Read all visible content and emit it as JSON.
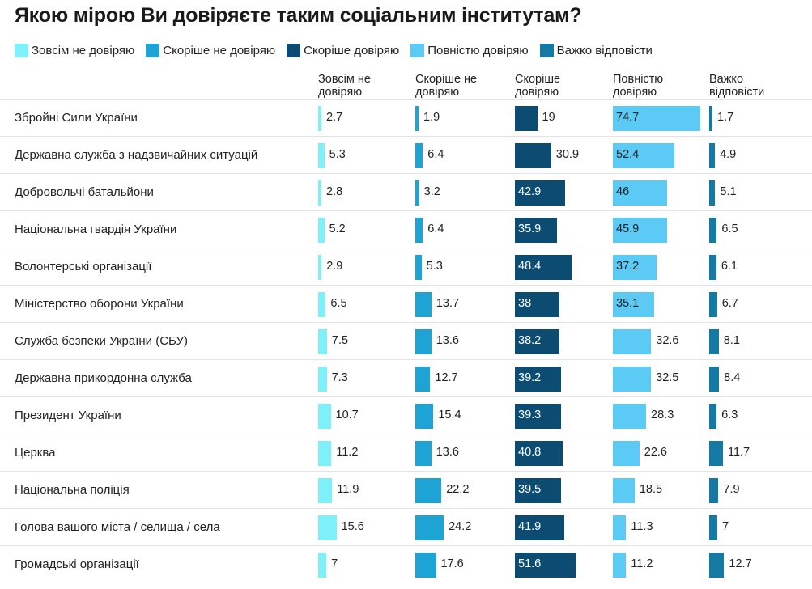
{
  "title": "Якою мірою Ви довіряєте таким соціальним інститутам?",
  "chart_data": {
    "type": "table",
    "title": "Якою мірою Ви довіряєте таким соціальним інститутам?",
    "series": [
      {
        "name": "Зовсім не довіряю",
        "header": [
          "Зовсім не",
          "довіряю"
        ],
        "color": "#7df0fa",
        "values": [
          2.7,
          5.3,
          2.8,
          5.2,
          2.9,
          6.5,
          7.5,
          7.3,
          10.7,
          11.2,
          11.9,
          15.6,
          7
        ]
      },
      {
        "name": "Скоріше не довіряю",
        "header": [
          "Скоріше не",
          "довіряю"
        ],
        "color": "#1ea3d5",
        "values": [
          1.9,
          6.4,
          3.2,
          6.4,
          5.3,
          13.7,
          13.6,
          12.7,
          15.4,
          13.6,
          22.2,
          24.2,
          17.6
        ]
      },
      {
        "name": "Скоріше довіряю",
        "header": [
          "Скоріше",
          "довіряю"
        ],
        "color": "#0d4c72",
        "values": [
          19,
          30.9,
          42.9,
          35.9,
          48.4,
          38,
          38.2,
          39.2,
          39.3,
          40.8,
          39.5,
          41.9,
          51.6
        ]
      },
      {
        "name": "Повністю довіряю",
        "header": [
          "Повністю",
          "довіряю"
        ],
        "color": "#5bcaf5",
        "values": [
          74.7,
          52.4,
          46,
          45.9,
          37.2,
          35.1,
          32.6,
          32.5,
          28.3,
          22.6,
          18.5,
          11.3,
          11.2
        ]
      },
      {
        "name": "Важко відповісти",
        "header": [
          "Важко",
          "відповісти"
        ],
        "color": "#1479a3",
        "values": [
          1.7,
          4.9,
          5.1,
          6.5,
          6.1,
          6.7,
          8.1,
          8.4,
          6.3,
          11.7,
          7.9,
          7,
          12.7
        ]
      }
    ],
    "categories": [
      "Збройні Сили України",
      "Державна служба з надзвичайних ситуацій",
      "Добровольчі батальйони",
      "Національна гвардія України",
      "Волонтерські організації",
      "Міністерство оборони України",
      "Служба безпеки України (СБУ)",
      "Державна прикордонна служба",
      "Президент України",
      "Церква",
      "Національна поліція",
      "Голова вашого міста / селища / села",
      "Громадські організації"
    ]
  }
}
